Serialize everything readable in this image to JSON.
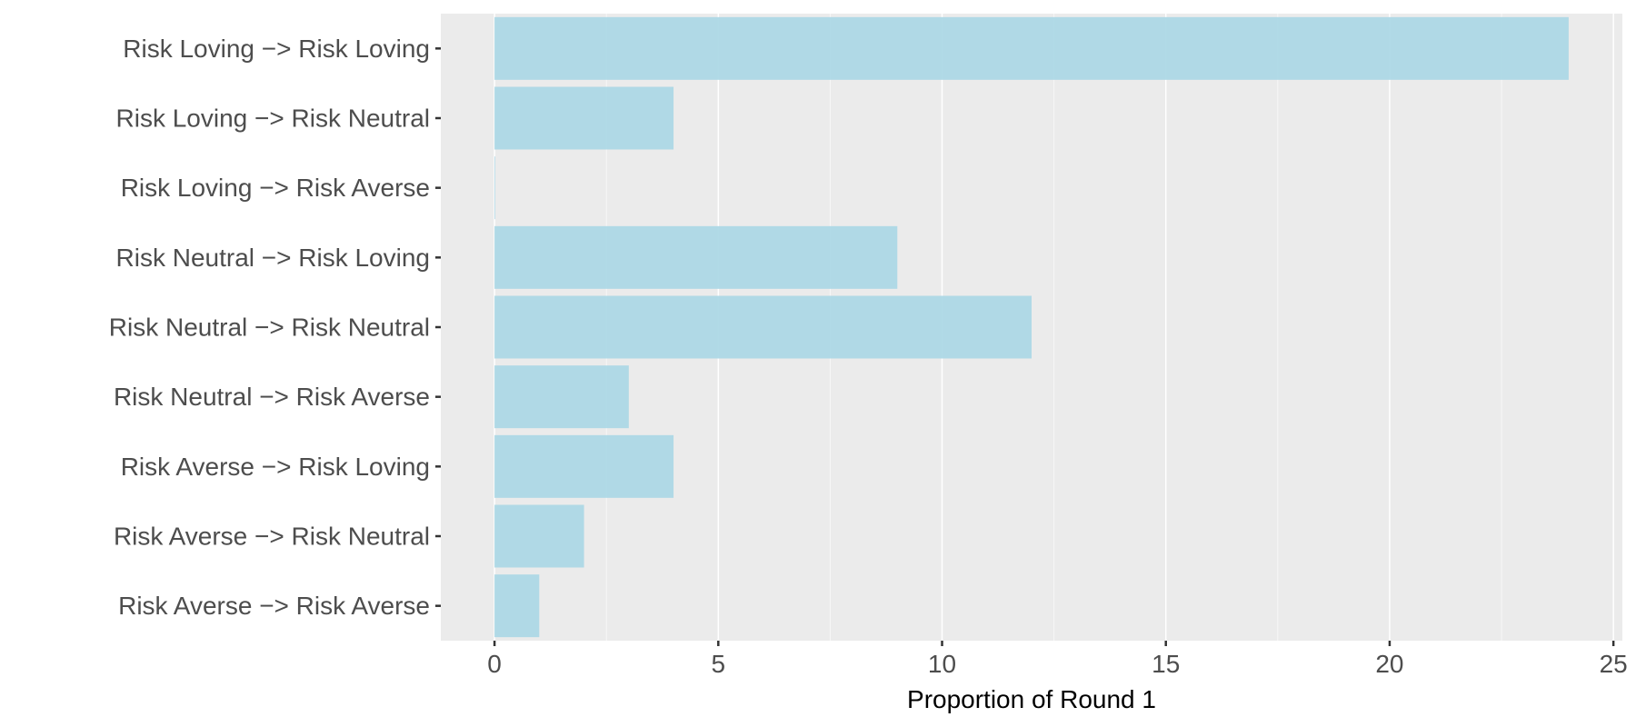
{
  "chart_data": {
    "type": "bar",
    "orientation": "horizontal",
    "categories": [
      "Risk Loving -> Risk Loving",
      "Risk Loving -> Risk Neutral",
      "Risk Loving -> Risk Averse",
      "Risk Neutral -> Risk Loving",
      "Risk Neutral -> Risk Neutral",
      "Risk Neutral -> Risk Averse",
      "Risk Averse -> Risk Loving",
      "Risk Averse -> Risk Neutral",
      "Risk Averse -> Risk Averse"
    ],
    "category_display": [
      "Risk Loving −> Risk Loving",
      "Risk Loving −> Risk Neutral",
      "Risk Loving −> Risk Averse",
      "Risk Neutral −> Risk Loving",
      "Risk Neutral −> Risk Neutral",
      "Risk Neutral −> Risk Averse",
      "Risk Averse −> Risk Loving",
      "Risk Averse −> Risk Neutral",
      "Risk Averse −> Risk Averse"
    ],
    "values": [
      24,
      4,
      0,
      9,
      12,
      3,
      4,
      2,
      1
    ],
    "title": "",
    "xlabel": "Proportion of Round 1",
    "ylabel": "",
    "xlim": [
      -1.2,
      25.2
    ],
    "xticks": [
      0,
      5,
      10,
      15,
      20,
      25
    ],
    "xtick_labels": [
      "0",
      "5",
      "10",
      "15",
      "20",
      "25"
    ],
    "grid": true,
    "legend": "none",
    "colors": {
      "bar": "#add8e6",
      "panel_background": "#ebebeb",
      "grid_major": "#ffffff",
      "grid_minor": "#f7f7f7",
      "tick": "#333333"
    }
  }
}
